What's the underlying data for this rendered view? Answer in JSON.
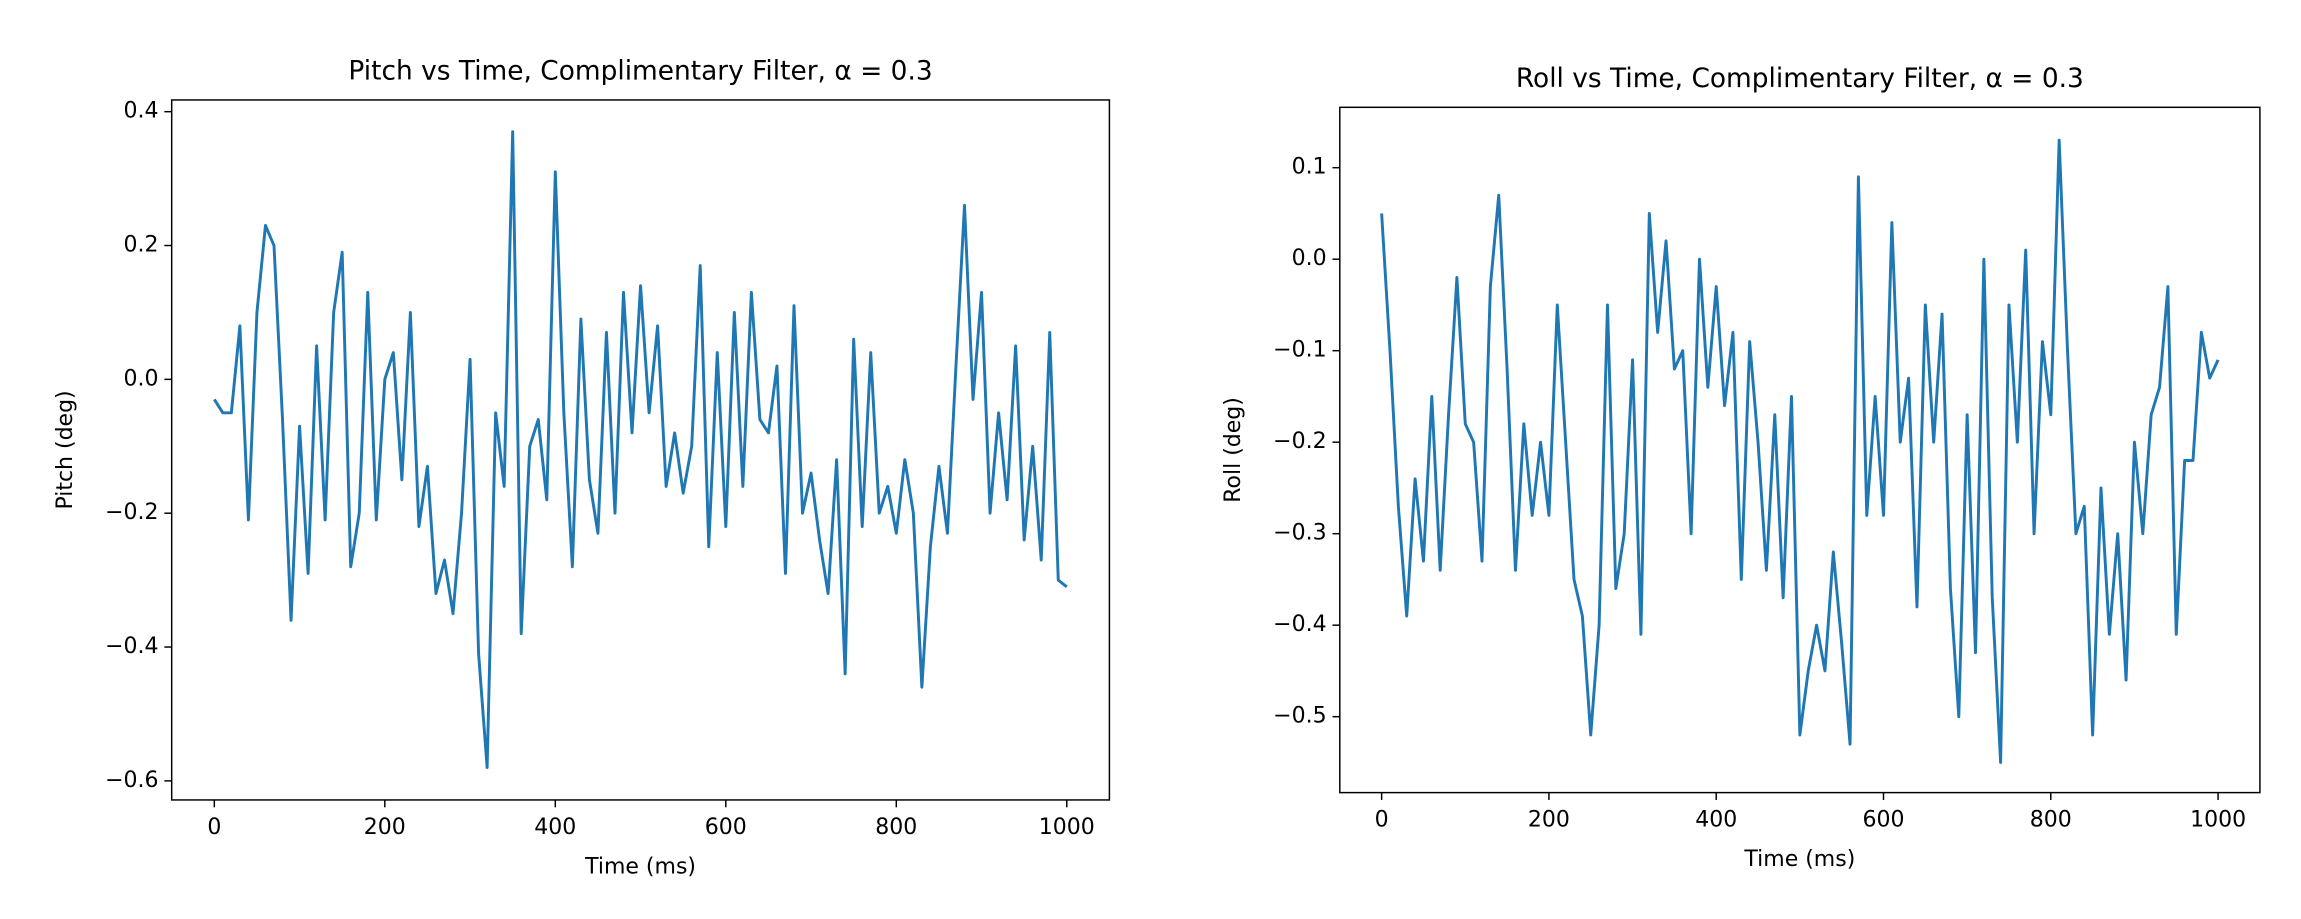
{
  "chart_data": [
    {
      "type": "line",
      "title": "Pitch vs Time, Complimentary Filter, α = 0.3",
      "xlabel": "Time (ms)",
      "ylabel": "Pitch (deg)",
      "color": "#1f77b4",
      "x": [
        0,
        10,
        20,
        30,
        40,
        50,
        60,
        70,
        80,
        90,
        100,
        110,
        120,
        130,
        140,
        150,
        160,
        170,
        180,
        190,
        200,
        210,
        220,
        230,
        240,
        250,
        260,
        270,
        280,
        290,
        300,
        310,
        320,
        330,
        340,
        350,
        360,
        370,
        380,
        390,
        400,
        410,
        420,
        430,
        440,
        450,
        460,
        470,
        480,
        490,
        500,
        510,
        520,
        530,
        540,
        550,
        560,
        570,
        580,
        590,
        600,
        610,
        620,
        630,
        640,
        650,
        660,
        670,
        680,
        690,
        700,
        710,
        720,
        730,
        740,
        750,
        760,
        770,
        780,
        790,
        800,
        810,
        820,
        830,
        840,
        850,
        860,
        870,
        880,
        890,
        900,
        910,
        920,
        930,
        940,
        950,
        960,
        970,
        980,
        990,
        1000
      ],
      "values": [
        -0.03,
        -0.05,
        -0.05,
        0.08,
        -0.21,
        0.1,
        0.23,
        0.2,
        -0.06,
        -0.36,
        -0.07,
        -0.29,
        0.05,
        -0.21,
        0.1,
        0.19,
        -0.28,
        -0.2,
        0.13,
        -0.21,
        0.0,
        0.04,
        -0.15,
        0.1,
        -0.22,
        -0.13,
        -0.32,
        -0.27,
        -0.35,
        -0.2,
        0.03,
        -0.41,
        -0.58,
        -0.05,
        -0.16,
        0.37,
        -0.38,
        -0.1,
        -0.06,
        -0.18,
        0.31,
        -0.05,
        -0.28,
        0.09,
        -0.15,
        -0.23,
        0.07,
        -0.2,
        0.13,
        -0.08,
        0.14,
        -0.05,
        0.08,
        -0.16,
        -0.08,
        -0.17,
        -0.1,
        0.17,
        -0.25,
        0.04,
        -0.22,
        0.1,
        -0.16,
        0.13,
        -0.06,
        -0.08,
        0.02,
        -0.29,
        0.11,
        -0.2,
        -0.14,
        -0.24,
        -0.32,
        -0.12,
        -0.44,
        0.06,
        -0.22,
        0.04,
        -0.2,
        -0.16,
        -0.23,
        -0.12,
        -0.2,
        -0.46,
        -0.25,
        -0.13,
        -0.23,
        0.02,
        0.26,
        -0.03,
        0.13,
        -0.2,
        -0.05,
        -0.18,
        0.05,
        -0.24,
        -0.1,
        -0.27,
        0.07,
        -0.3,
        -0.31
      ],
      "xlim": [
        -50,
        1050
      ],
      "xticks": [
        0,
        200,
        400,
        600,
        800,
        1000
      ],
      "ylim": [
        -0.6285,
        0.4175
      ],
      "yticks": [
        {
          "value": -0.6,
          "label": "−0.6"
        },
        {
          "value": -0.4,
          "label": "−0.4"
        },
        {
          "value": -0.2,
          "label": "−0.2"
        },
        {
          "value": 0.0,
          "label": "0.0"
        },
        {
          "value": 0.2,
          "label": "0.2"
        },
        {
          "value": 0.4,
          "label": "0.4"
        }
      ],
      "grid": false
    },
    {
      "type": "line",
      "title": "Roll vs Time, Complimentary Filter, α = 0.3",
      "xlabel": "Time (ms)",
      "ylabel": "Roll (deg)",
      "color": "#1f77b4",
      "x": [
        0,
        10,
        20,
        30,
        40,
        50,
        60,
        70,
        80,
        90,
        100,
        110,
        120,
        130,
        140,
        150,
        160,
        170,
        180,
        190,
        200,
        210,
        220,
        230,
        240,
        250,
        260,
        270,
        280,
        290,
        300,
        310,
        320,
        330,
        340,
        350,
        360,
        370,
        380,
        390,
        400,
        410,
        420,
        430,
        440,
        450,
        460,
        470,
        480,
        490,
        500,
        510,
        520,
        530,
        540,
        550,
        560,
        570,
        580,
        590,
        600,
        610,
        620,
        630,
        640,
        650,
        660,
        670,
        680,
        690,
        700,
        710,
        720,
        730,
        740,
        750,
        760,
        770,
        780,
        790,
        800,
        810,
        820,
        830,
        840,
        850,
        860,
        870,
        880,
        890,
        900,
        910,
        920,
        930,
        940,
        950,
        960,
        970,
        980,
        990,
        1000
      ],
      "values": [
        0.05,
        -0.1,
        -0.27,
        -0.39,
        -0.24,
        -0.33,
        -0.15,
        -0.34,
        -0.17,
        -0.02,
        -0.18,
        -0.2,
        -0.33,
        -0.03,
        0.07,
        -0.12,
        -0.34,
        -0.18,
        -0.28,
        -0.2,
        -0.28,
        -0.05,
        -0.2,
        -0.35,
        -0.39,
        -0.52,
        -0.4,
        -0.05,
        -0.36,
        -0.3,
        -0.11,
        -0.41,
        0.05,
        -0.08,
        0.02,
        -0.12,
        -0.1,
        -0.3,
        0.0,
        -0.14,
        -0.03,
        -0.16,
        -0.08,
        -0.35,
        -0.09,
        -0.2,
        -0.34,
        -0.17,
        -0.37,
        -0.15,
        -0.52,
        -0.45,
        -0.4,
        -0.45,
        -0.32,
        -0.42,
        -0.53,
        0.09,
        -0.28,
        -0.15,
        -0.28,
        0.04,
        -0.2,
        -0.13,
        -0.38,
        -0.05,
        -0.2,
        -0.06,
        -0.36,
        -0.5,
        -0.17,
        -0.43,
        0.0,
        -0.37,
        -0.55,
        -0.05,
        -0.2,
        0.01,
        -0.3,
        -0.09,
        -0.17,
        0.13,
        -0.1,
        -0.3,
        -0.27,
        -0.52,
        -0.25,
        -0.41,
        -0.3,
        -0.46,
        -0.2,
        -0.3,
        -0.17,
        -0.14,
        -0.03,
        -0.41,
        -0.22,
        -0.22,
        -0.08,
        -0.13,
        -0.11
      ],
      "xlim": [
        -50,
        1050
      ],
      "xticks": [
        0,
        200,
        400,
        600,
        800,
        1000
      ],
      "ylim": [
        -0.583,
        0.166
      ],
      "yticks": [
        {
          "value": -0.5,
          "label": "−0.5"
        },
        {
          "value": -0.4,
          "label": "−0.4"
        },
        {
          "value": -0.3,
          "label": "−0.3"
        },
        {
          "value": -0.2,
          "label": "−0.2"
        },
        {
          "value": -0.1,
          "label": "−0.1"
        },
        {
          "value": 0.0,
          "label": "0.0"
        },
        {
          "value": 0.1,
          "label": "0.1"
        }
      ],
      "grid": false
    }
  ]
}
